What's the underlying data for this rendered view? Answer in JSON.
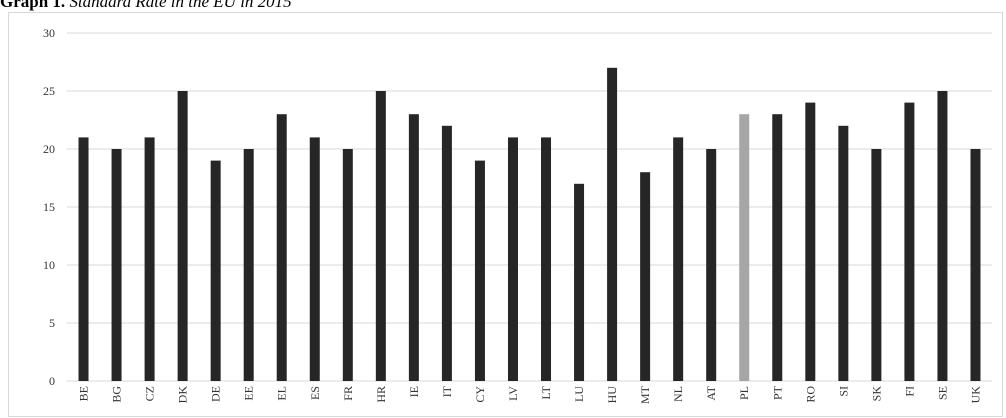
{
  "caption": {
    "lead": "Graph 1.",
    "rest": "Standard Rate in the EU in 2015"
  },
  "chart_data": {
    "type": "bar",
    "title": "",
    "xlabel": "",
    "ylabel": "",
    "ylim": [
      0,
      30
    ],
    "yticks": [
      0,
      5,
      10,
      15,
      20,
      25,
      30
    ],
    "grid": true,
    "categories": [
      "BE",
      "BG",
      "CZ",
      "DK",
      "DE",
      "EE",
      "EL",
      "ES",
      "FR",
      "HR",
      "IE",
      "IT",
      "CY",
      "LV",
      "LT",
      "LU",
      "HU",
      "MT",
      "NL",
      "AT",
      "PL",
      "PT",
      "RO",
      "SI",
      "SK",
      "FI",
      "SE",
      "UK"
    ],
    "values": [
      21,
      20,
      21,
      25,
      19,
      20,
      23,
      21,
      20,
      25,
      23,
      22,
      19,
      21,
      21,
      17,
      27,
      18,
      21,
      20,
      23,
      23,
      24,
      22,
      20,
      24,
      25,
      20
    ],
    "colors": {
      "bar": "#262626",
      "highlight": "#a6a6a6",
      "highlight_category": "PL",
      "grid": "#d9d9d9"
    }
  }
}
